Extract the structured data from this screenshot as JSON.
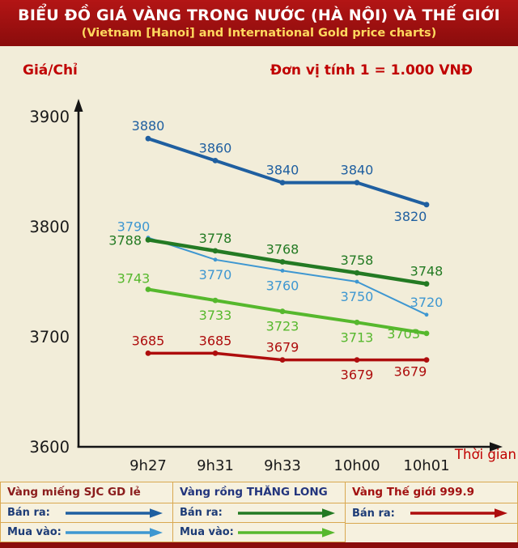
{
  "header": {
    "title": "BIỂU ĐỒ GIÁ VÀNG TRONG NƯỚC (HÀ NỘI) VÀ THẾ GIỚI",
    "subtitle": "(Vietnam [Hanoi] and International Gold price charts)"
  },
  "chart_meta": {
    "y_axis_label": "Giá/Chỉ",
    "unit_label": "Đơn vị tính 1 = 1.000 VNĐ",
    "x_axis_label": "Thời gian"
  },
  "chart_data": {
    "type": "line",
    "title": "Vietnam (Hanoi) and International Gold price chart",
    "categories": [
      "9h27",
      "9h31",
      "9h33",
      "10h00",
      "10h01"
    ],
    "series": [
      {
        "name": "Vàng miếng SJC GD lẻ - Bán ra",
        "color": "#1f5fa0",
        "values": [
          3880,
          3860,
          3840,
          3840,
          3820
        ],
        "label_pos": [
          "above",
          "above",
          "above",
          "above",
          "below-left"
        ]
      },
      {
        "name": "Vàng miếng SJC GD lẻ - Mua vào",
        "color": "#3e97d1",
        "values": [
          3790,
          3770,
          3760,
          3750,
          3720
        ],
        "label_pos": [
          "left-above",
          "below",
          "below",
          "below",
          "above"
        ]
      },
      {
        "name": "Vàng rồng THĂNG LONG - Bán ra",
        "color": "#237a23",
        "values": [
          3788,
          3778,
          3768,
          3758,
          3748
        ],
        "label_pos": [
          "left",
          "above",
          "above",
          "above",
          "above"
        ]
      },
      {
        "name": "Vàng rồng THĂNG LONG - Mua vào",
        "color": "#56b82d",
        "values": [
          3743,
          3733,
          3723,
          3713,
          3703
        ],
        "label_pos": [
          "left-above",
          "below",
          "below",
          "below",
          "left"
        ]
      },
      {
        "name": "Vàng Thế giới 999.9 - Bán ra",
        "color": "#ae0d0d",
        "values": [
          3685,
          3685,
          3679,
          3679,
          3679
        ],
        "label_pos": [
          "above",
          "above",
          "above",
          "below",
          "below-left"
        ]
      }
    ],
    "ylim": [
      3600,
      3920
    ],
    "yticks": [
      3600,
      3700,
      3800,
      3900
    ],
    "grid": false,
    "legend_position": "bottom",
    "xlabel": "Thời gian",
    "ylabel": "Giá/Chỉ (1 = 1.000 VNĐ)"
  },
  "legend": {
    "groups": [
      {
        "title": "Vàng miếng SJC GD lẻ",
        "items": [
          {
            "label": "Bán ra:",
            "color": "#1f5fa0"
          },
          {
            "label": "Mua vào:",
            "color": "#3e97d1"
          }
        ]
      },
      {
        "title": "Vàng rồng THĂNG LONG",
        "items": [
          {
            "label": "Bán ra:",
            "color": "#237a23"
          },
          {
            "label": "Mua vào:",
            "color": "#56b82d"
          }
        ]
      },
      {
        "title": "Vàng Thế giới 999.9",
        "items": [
          {
            "label": "Bán ra:",
            "color": "#ae0d0d"
          }
        ]
      }
    ]
  },
  "colors": {
    "header_bg": "#8a0c0c",
    "page_bg": "#f2edd9",
    "accent_red_text": "#c00000",
    "axis": "#151515",
    "legend_border": "#d9a850"
  }
}
